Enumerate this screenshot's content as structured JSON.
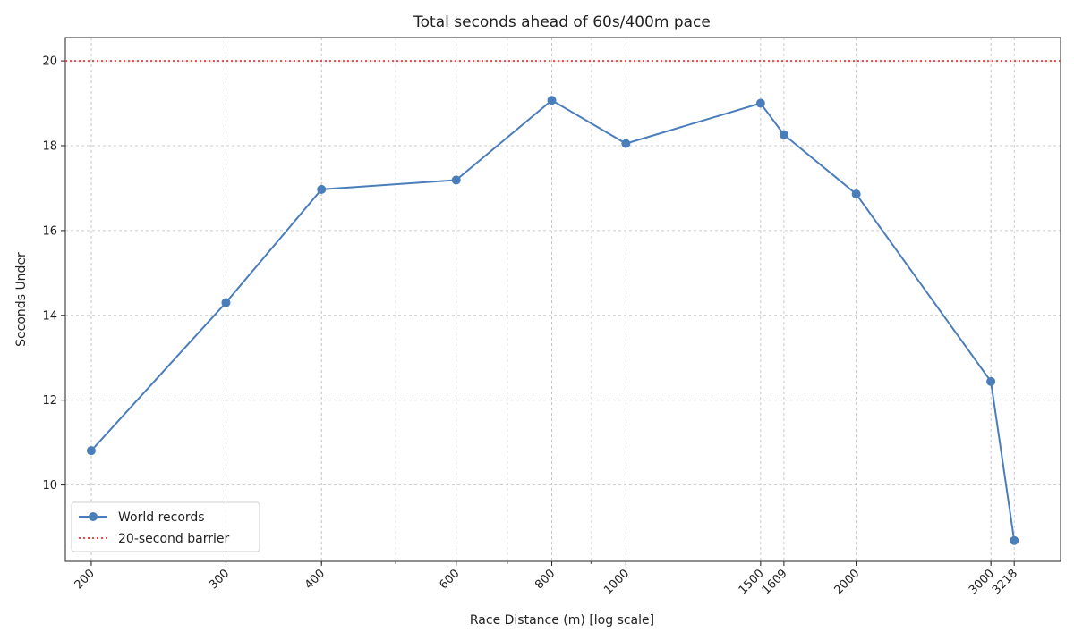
{
  "chart_data": {
    "type": "line",
    "title": "Total seconds ahead of 60s/400m pace",
    "xlabel": "Race Distance (m) [log scale]",
    "ylabel": "Seconds Under",
    "xscale": "log",
    "xlim": [
      185,
      3700
    ],
    "ylim": [
      8.2,
      20.55
    ],
    "xticks": [
      200,
      300,
      400,
      600,
      800,
      1000,
      1500,
      1609,
      2000,
      3000,
      3218
    ],
    "xtick_labels": [
      "200",
      "300",
      "400",
      "600",
      "800",
      "1000",
      "1500",
      "1609",
      "2000",
      "3000",
      "3218"
    ],
    "yticks": [
      10,
      12,
      14,
      16,
      18,
      20
    ],
    "yticks_labels": [
      "10",
      "12",
      "14",
      "16",
      "18",
      "20"
    ],
    "grid": true,
    "legend_position": "lower-left",
    "series": [
      {
        "name": "World records",
        "color": "#4a7ebb",
        "marker": "circle",
        "x": [
          200,
          300,
          400,
          600,
          800,
          1000,
          1500,
          1609,
          2000,
          3000,
          3218
        ],
        "y": [
          10.81,
          14.3,
          16.97,
          17.19,
          19.07,
          18.05,
          19.0,
          18.26,
          16.86,
          12.44,
          8.69
        ]
      }
    ],
    "reference_line": {
      "name": "20-second barrier",
      "y": 20,
      "color": "#e84a4a",
      "style": "dotted"
    }
  }
}
